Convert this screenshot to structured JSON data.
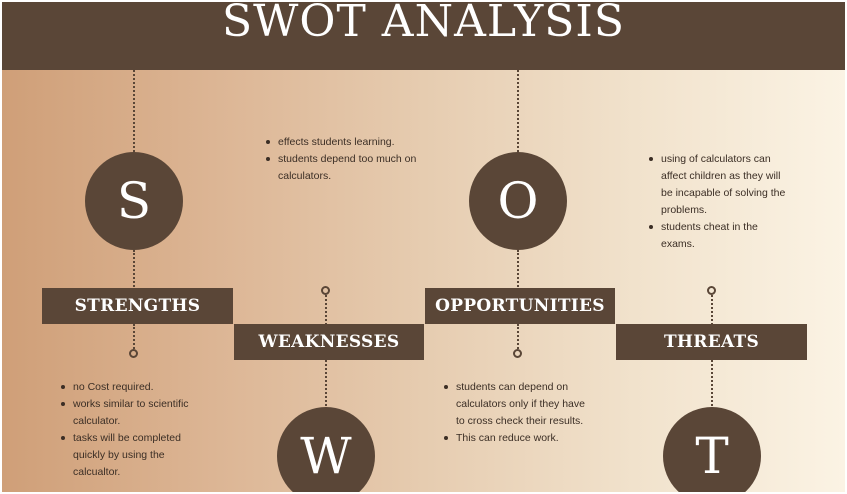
{
  "title": "SWOT ANALYSIS",
  "colors": {
    "primary": "#5a4637",
    "gradient_start": "#cf9f78",
    "gradient_end": "#fbf3e4",
    "text": "#3b2e25"
  },
  "strengths": {
    "letter": "S",
    "label": "STRENGTHS",
    "points": [
      "no Cost required.",
      "works similar to scientific calculator.",
      "tasks will be completed quickly by using the calcualtor."
    ]
  },
  "weaknesses": {
    "letter": "W",
    "label": "WEAKNESSES",
    "points": [
      "effects students learning.",
      "students depend too much on calculators."
    ]
  },
  "opportunities": {
    "letter": "O",
    "label": "OPPORTUNITIES",
    "points": [
      "students can depend on calculators only if they have to cross check their results.",
      "This can reduce work."
    ]
  },
  "threats": {
    "letter": "T",
    "label": "THREATS",
    "points": [
      "using of calculators can affect children as they will be incapable of solving the problems.",
      "students cheat in the exams."
    ]
  }
}
